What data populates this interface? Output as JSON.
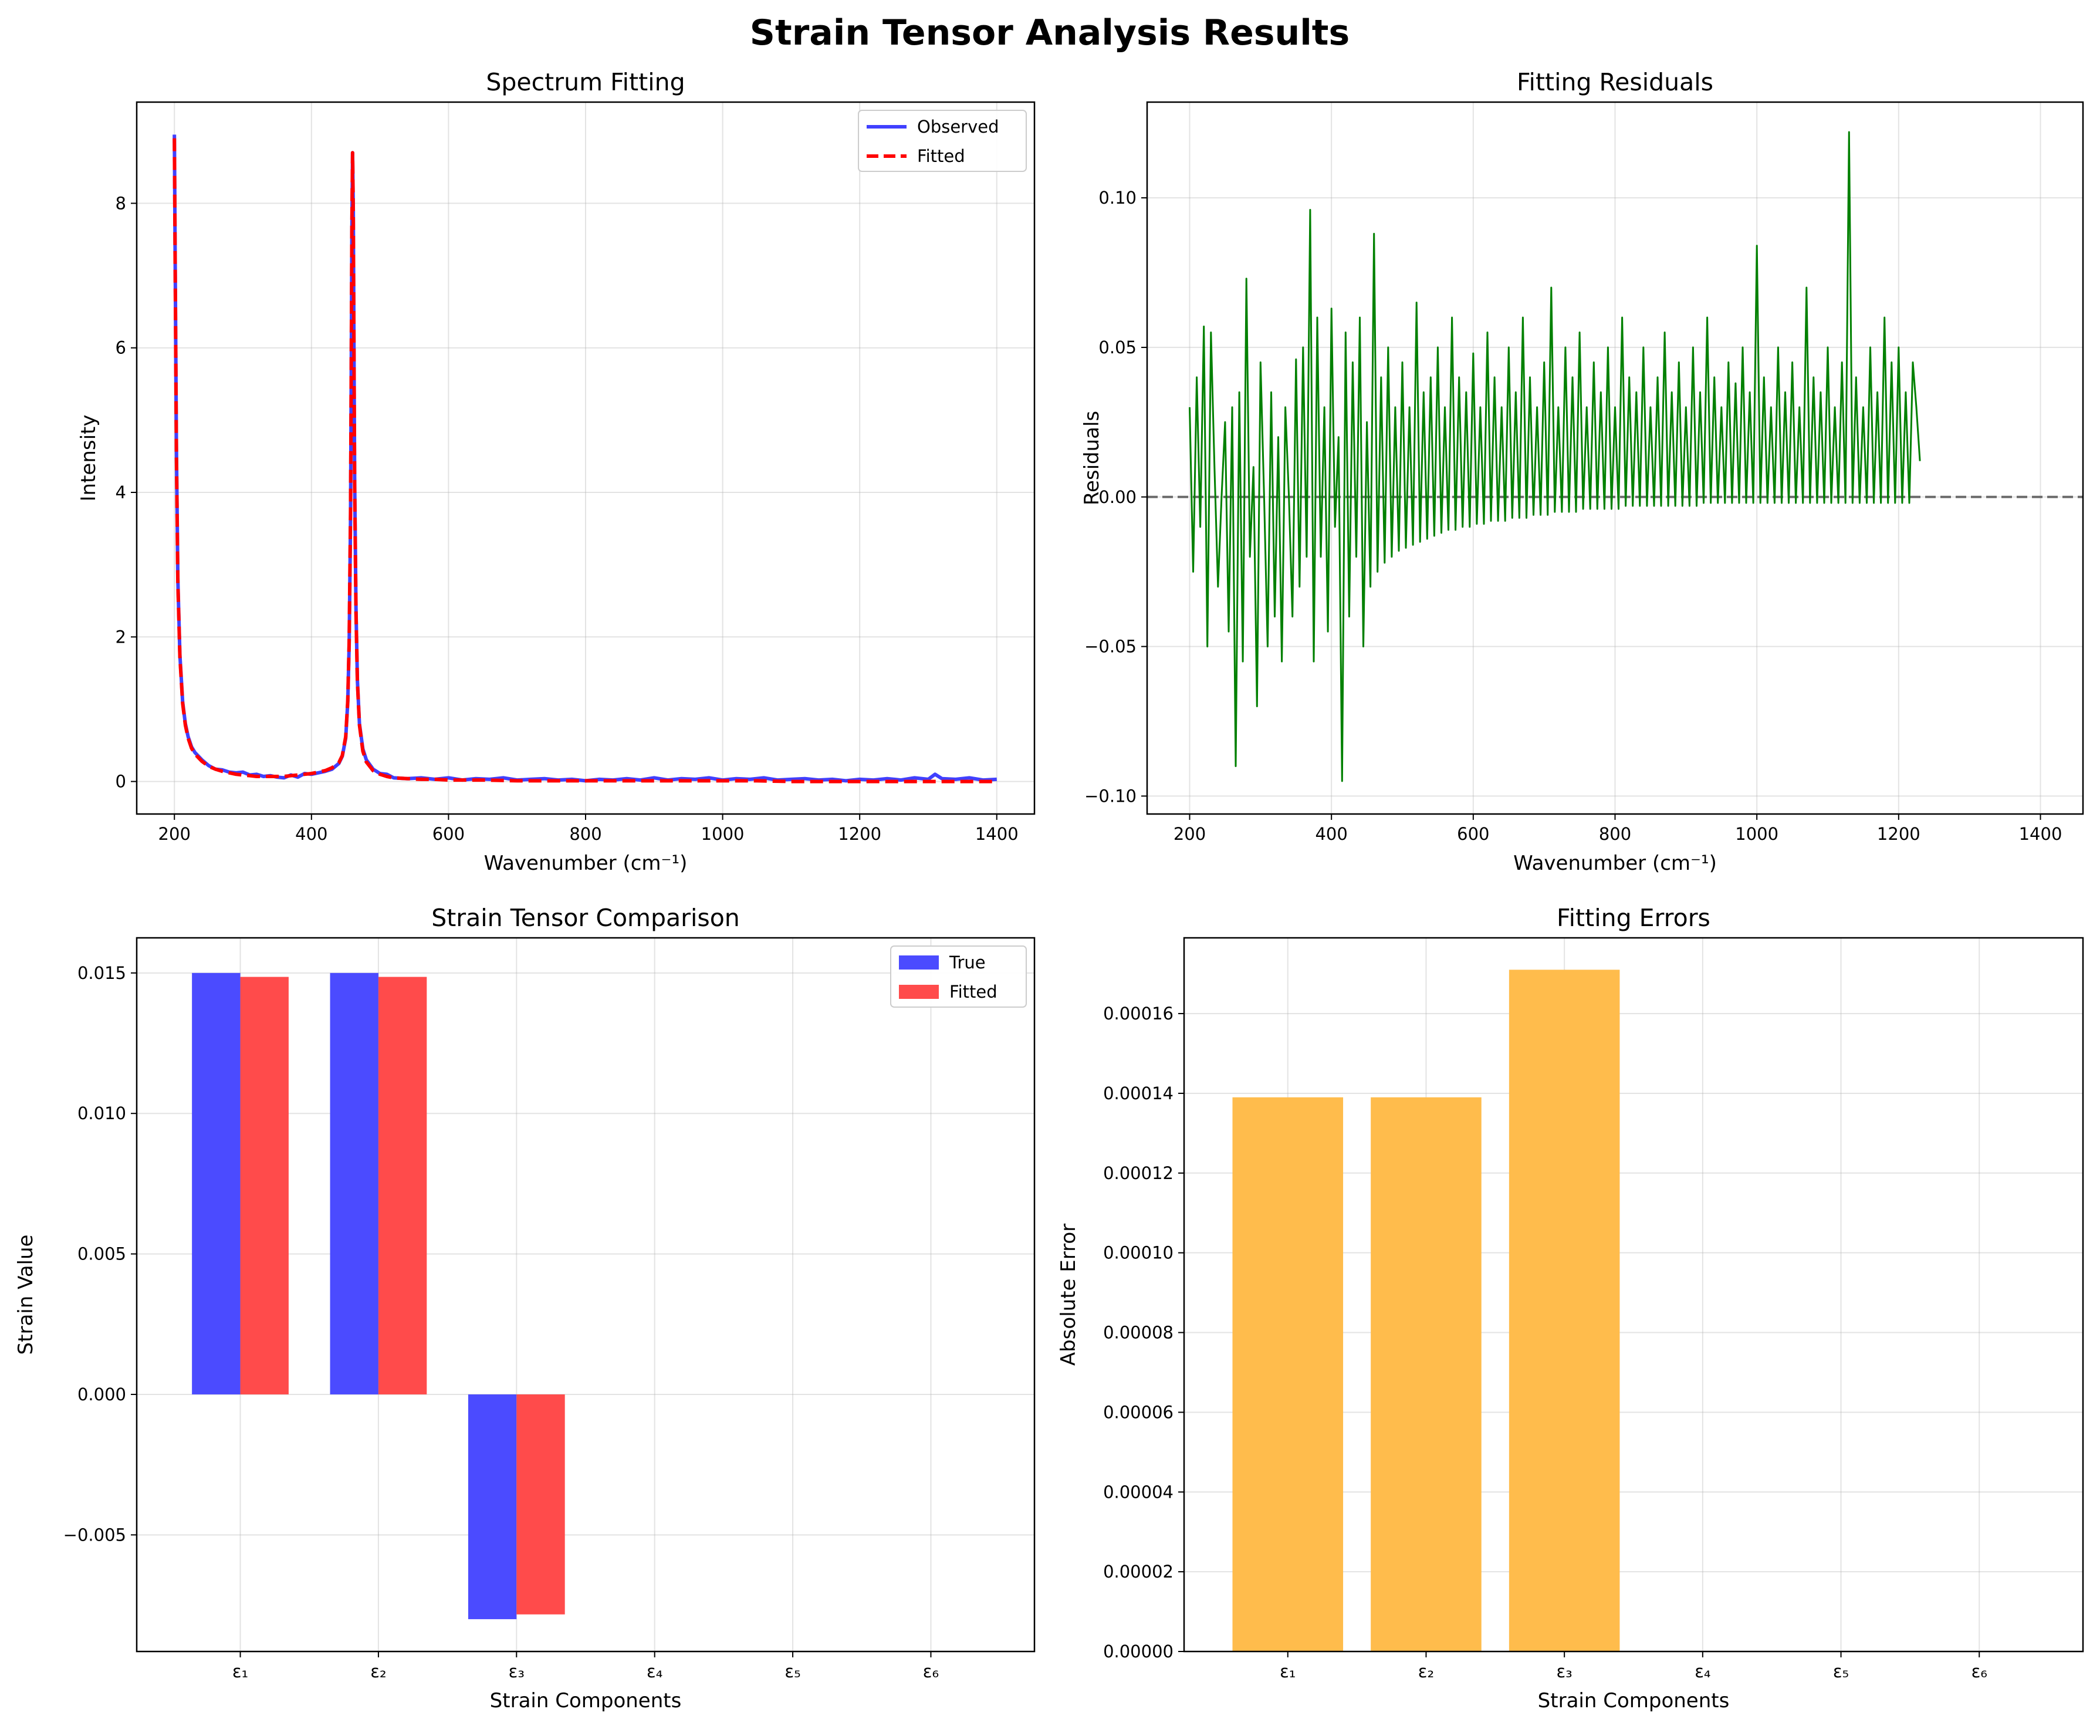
{
  "figure": {
    "title": "Strain Tensor Analysis Results"
  },
  "chart_data": [
    {
      "type": "line",
      "title": "Spectrum Fitting",
      "xlabel": "Wavenumber (cm⁻¹)",
      "ylabel": "Intensity",
      "xlim": [
        145,
        1455
      ],
      "ylim": [
        -0.45,
        9.4
      ],
      "xticks": [
        200,
        400,
        600,
        800,
        1000,
        1200,
        1400
      ],
      "yticks": [
        0,
        2,
        4,
        6,
        8
      ],
      "grid": true,
      "legend_position": "top-right",
      "series": [
        {
          "name": "Observed",
          "color": "#4040ff",
          "style": "solid",
          "x": [
            200,
            201,
            203,
            205,
            208,
            212,
            216,
            220,
            225,
            230,
            240,
            250,
            260,
            270,
            280,
            290,
            300,
            310,
            320,
            330,
            340,
            350,
            360,
            370,
            380,
            390,
            400,
            410,
            420,
            430,
            440,
            445,
            450,
            453,
            455,
            457,
            458,
            459,
            460,
            461,
            462,
            463,
            465,
            467,
            470,
            475,
            480,
            490,
            500,
            510,
            520,
            540,
            560,
            580,
            600,
            620,
            640,
            660,
            680,
            700,
            720,
            740,
            760,
            780,
            800,
            820,
            840,
            860,
            880,
            900,
            920,
            940,
            960,
            980,
            1000,
            1020,
            1040,
            1060,
            1080,
            1100,
            1120,
            1140,
            1160,
            1180,
            1200,
            1220,
            1240,
            1260,
            1280,
            1300,
            1310,
            1320,
            1340,
            1360,
            1380,
            1400
          ],
          "y": [
            8.95,
            7.4,
            4.6,
            2.8,
            1.75,
            1.1,
            0.8,
            0.62,
            0.48,
            0.4,
            0.3,
            0.22,
            0.17,
            0.16,
            0.13,
            0.12,
            0.13,
            0.09,
            0.1,
            0.07,
            0.08,
            0.06,
            0.05,
            0.09,
            0.06,
            0.11,
            0.1,
            0.12,
            0.14,
            0.17,
            0.25,
            0.35,
            0.6,
            1.1,
            1.9,
            3.6,
            5.6,
            7.6,
            8.7,
            7.9,
            6.1,
            4.2,
            2.4,
            1.4,
            0.8,
            0.45,
            0.3,
            0.17,
            0.11,
            0.1,
            0.05,
            0.04,
            0.05,
            0.03,
            0.05,
            0.02,
            0.04,
            0.03,
            0.05,
            0.02,
            0.03,
            0.04,
            0.02,
            0.03,
            0.01,
            0.03,
            0.02,
            0.04,
            0.02,
            0.05,
            0.02,
            0.04,
            0.03,
            0.05,
            0.02,
            0.04,
            0.03,
            0.05,
            0.02,
            0.03,
            0.04,
            0.02,
            0.03,
            0.01,
            0.03,
            0.02,
            0.04,
            0.02,
            0.05,
            0.03,
            0.1,
            0.04,
            0.03,
            0.05,
            0.02,
            0.03
          ]
        },
        {
          "name": "Fitted",
          "color": "#ff0000",
          "style": "dashed",
          "x": [
            200,
            201,
            203,
            205,
            208,
            212,
            216,
            220,
            225,
            230,
            240,
            250,
            260,
            270,
            280,
            290,
            300,
            310,
            320,
            330,
            340,
            350,
            360,
            370,
            380,
            390,
            400,
            410,
            420,
            430,
            440,
            445,
            450,
            453,
            455,
            457,
            458,
            459,
            460,
            461,
            462,
            463,
            465,
            467,
            470,
            475,
            480,
            490,
            500,
            510,
            520,
            540,
            560,
            580,
            600,
            650,
            700,
            750,
            800,
            850,
            900,
            950,
            1000,
            1050,
            1100,
            1150,
            1200,
            1250,
            1300,
            1350,
            1400
          ],
          "y": [
            8.9,
            7.3,
            4.5,
            2.75,
            1.72,
            1.08,
            0.78,
            0.6,
            0.46,
            0.38,
            0.28,
            0.21,
            0.17,
            0.14,
            0.12,
            0.1,
            0.09,
            0.08,
            0.07,
            0.07,
            0.07,
            0.07,
            0.07,
            0.08,
            0.09,
            0.1,
            0.11,
            0.13,
            0.15,
            0.19,
            0.26,
            0.36,
            0.62,
            1.12,
            1.95,
            3.7,
            5.7,
            7.7,
            8.7,
            7.8,
            6.0,
            4.1,
            2.35,
            1.38,
            0.78,
            0.42,
            0.27,
            0.15,
            0.1,
            0.07,
            0.05,
            0.04,
            0.03,
            0.03,
            0.02,
            0.02,
            0.01,
            0.01,
            0.01,
            0.01,
            0.01,
            0.01,
            0.01,
            0.01,
            0.0,
            0.0,
            0.0,
            0.0,
            0.0,
            0.0,
            0.0
          ]
        }
      ]
    },
    {
      "type": "line",
      "title": "Fitting Residuals",
      "xlabel": "Wavenumber (cm⁻¹)",
      "ylabel": "Residuals",
      "xlim": [
        140,
        1460
      ],
      "ylim": [
        -0.106,
        0.132
      ],
      "xticks": [
        200,
        400,
        600,
        800,
        1000,
        1200,
        1400
      ],
      "yticks": [
        -0.1,
        -0.05,
        0.0,
        0.05,
        0.1
      ],
      "ytick_labels": [
        "−0.10",
        "−0.05",
        "0.00",
        "0.05",
        "0.10"
      ],
      "grid": true,
      "reference_line": {
        "y": 0,
        "color": "#555555",
        "style": "dashed"
      },
      "series": [
        {
          "name": "",
          "color": "#008000",
          "x_start": 200,
          "x_step": 5,
          "y": [
            0.03,
            -0.025,
            0.04,
            -0.01,
            0.057,
            -0.05,
            0.055,
            0.01,
            -0.03,
            0.0,
            0.025,
            -0.045,
            0.03,
            -0.09,
            0.035,
            -0.055,
            0.073,
            -0.02,
            0.01,
            -0.07,
            0.045,
            0.0,
            -0.05,
            0.035,
            -0.04,
            0.02,
            -0.055,
            0.03,
            0.0,
            -0.04,
            0.046,
            -0.03,
            0.05,
            -0.02,
            0.096,
            -0.055,
            0.06,
            -0.02,
            0.03,
            -0.045,
            0.063,
            -0.01,
            0.02,
            -0.095,
            0.055,
            -0.04,
            0.045,
            -0.02,
            0.06,
            -0.05,
            0.025,
            -0.03,
            0.088,
            -0.025,
            0.04,
            -0.022,
            0.05,
            -0.02,
            0.03,
            -0.018,
            0.045,
            -0.017,
            0.03,
            -0.016,
            0.065,
            -0.015,
            0.035,
            -0.014,
            0.04,
            -0.013,
            0.05,
            -0.012,
            0.03,
            -0.011,
            0.06,
            -0.011,
            0.04,
            -0.01,
            0.035,
            -0.01,
            0.048,
            -0.009,
            0.03,
            -0.009,
            0.055,
            -0.008,
            0.04,
            -0.008,
            0.03,
            -0.008,
            0.05,
            -0.007,
            0.035,
            -0.007,
            0.06,
            -0.007,
            0.04,
            -0.006,
            0.03,
            -0.006,
            0.045,
            -0.006,
            0.07,
            -0.005,
            0.03,
            -0.005,
            0.05,
            -0.005,
            0.04,
            -0.005,
            0.055,
            -0.004,
            0.03,
            -0.004,
            0.045,
            -0.004,
            0.035,
            -0.004,
            0.05,
            -0.004,
            0.03,
            -0.004,
            0.06,
            -0.003,
            0.04,
            -0.003,
            0.035,
            -0.003,
            0.05,
            -0.003,
            0.03,
            -0.003,
            0.04,
            -0.003,
            0.055,
            -0.003,
            0.035,
            -0.003,
            0.045,
            -0.003,
            0.03,
            -0.003,
            0.05,
            -0.003,
            0.035,
            -0.002,
            0.06,
            -0.002,
            0.04,
            -0.002,
            0.03,
            -0.002,
            0.045,
            -0.002,
            0.038,
            -0.002,
            0.05,
            -0.002,
            0.035,
            -0.002,
            0.084,
            -0.002,
            0.04,
            -0.002,
            0.03,
            -0.002,
            0.05,
            -0.002,
            0.035,
            -0.002,
            0.045,
            -0.002,
            0.03,
            -0.002,
            0.07,
            -0.002,
            0.04,
            -0.002,
            0.035,
            -0.002,
            0.05,
            -0.002,
            0.03,
            -0.002,
            0.045,
            -0.002,
            0.122,
            -0.002,
            0.04,
            -0.002,
            0.03,
            -0.002,
            0.05,
            -0.002,
            0.035,
            -0.002,
            0.06,
            -0.002,
            0.045,
            -0.002,
            0.05,
            -0.002,
            0.035,
            -0.002,
            0.045,
            0.03,
            0.012
          ]
        }
      ]
    },
    {
      "type": "bar",
      "title": "Strain Tensor Comparison",
      "xlabel": "Strain Components",
      "ylabel": "Strain Value",
      "categories": [
        "ε₁",
        "ε₂",
        "ε₃",
        "ε₄",
        "ε₅",
        "ε₆"
      ],
      "ylim": [
        -0.00915,
        0.01625
      ],
      "yticks": [
        -0.005,
        0.0,
        0.005,
        0.01,
        0.015
      ],
      "ytick_labels": [
        "−0.005",
        "0.000",
        "0.005",
        "0.010",
        "0.015"
      ],
      "grid": true,
      "legend_position": "top-right",
      "series": [
        {
          "name": "True",
          "color": "#4b4bff",
          "values": [
            0.015,
            0.015,
            -0.008,
            0,
            0,
            0
          ]
        },
        {
          "name": "Fitted",
          "color": "#ff4b4b",
          "values": [
            0.01486,
            0.01486,
            -0.00783,
            0,
            0,
            0
          ]
        }
      ]
    },
    {
      "type": "bar",
      "title": "Fitting Errors",
      "xlabel": "Strain Components",
      "ylabel": "Absolute Error",
      "categories": [
        "ε₁",
        "ε₂",
        "ε₃",
        "ε₄",
        "ε₅",
        "ε₆"
      ],
      "ylim": [
        0,
        0.000179
      ],
      "yticks": [
        0,
        2e-05,
        4e-05,
        6e-05,
        8e-05,
        0.0001,
        0.00012,
        0.00014,
        0.00016
      ],
      "ytick_labels": [
        "0.00000",
        "0.00002",
        "0.00004",
        "0.00006",
        "0.00008",
        "0.00010",
        "0.00012",
        "0.00014",
        "0.00016"
      ],
      "grid": true,
      "series": [
        {
          "name": "",
          "color": "#ffbc4c",
          "values": [
            0.000139,
            0.000139,
            0.000171,
            0,
            0,
            0
          ]
        }
      ]
    }
  ]
}
